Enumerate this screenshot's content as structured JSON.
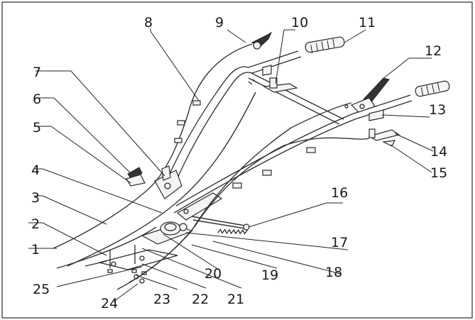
{
  "labels": {
    "l1": "1",
    "l2": "2",
    "l3": "3",
    "l4": "4",
    "l5": "5",
    "l6": "6",
    "l7": "7",
    "l8": "8",
    "l9": "9",
    "l10": "10",
    "l11": "11",
    "l12": "12",
    "l13": "13",
    "l14": "14",
    "l15": "15",
    "l16": "16",
    "l17": "17",
    "l18": "18",
    "l19": "19",
    "l20": "20",
    "l21": "21",
    "l22": "22",
    "l23": "23",
    "l24": "24",
    "l25": "25"
  }
}
